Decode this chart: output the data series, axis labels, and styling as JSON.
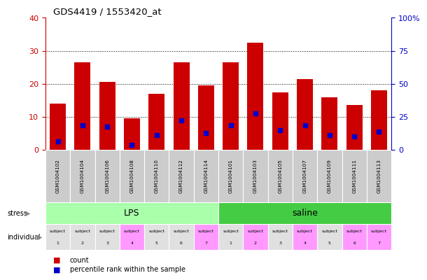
{
  "title": "GDS4419 / 1553420_at",
  "samples": [
    "GSM1004102",
    "GSM1004104",
    "GSM1004106",
    "GSM1004108",
    "GSM1004110",
    "GSM1004112",
    "GSM1004114",
    "GSM1004101",
    "GSM1004103",
    "GSM1004105",
    "GSM1004107",
    "GSM1004109",
    "GSM1004111",
    "GSM1004113"
  ],
  "counts": [
    14.0,
    26.5,
    20.5,
    9.5,
    17.0,
    26.5,
    19.5,
    26.5,
    32.5,
    17.5,
    21.5,
    16.0,
    13.5,
    18.0
  ],
  "percentile_ranks_left_scale": [
    2.5,
    7.5,
    7.0,
    1.5,
    4.5,
    9.0,
    5.0,
    7.5,
    11.0,
    6.0,
    7.5,
    4.5,
    4.0,
    5.5
  ],
  "bar_color": "#cc0000",
  "percentile_color": "#0000cc",
  "ylim_left": [
    0,
    40
  ],
  "ylim_right": [
    0,
    100
  ],
  "yticks_left": [
    0,
    10,
    20,
    30,
    40
  ],
  "yticks_right": [
    0,
    25,
    50,
    75,
    100
  ],
  "ytick_labels_left": [
    "0",
    "10",
    "20",
    "30",
    "40"
  ],
  "ytick_labels_right": [
    "0",
    "25",
    "50",
    "75",
    "100%"
  ],
  "stress_groups": [
    {
      "label": "LPS",
      "start": 0,
      "end": 7,
      "color": "#aaffaa"
    },
    {
      "label": "saline",
      "start": 7,
      "end": 14,
      "color": "#44cc44"
    }
  ],
  "individual_colors": [
    "#e0e0e0",
    "#e0e0e0",
    "#e0e0e0",
    "#ff99ff",
    "#e0e0e0",
    "#e0e0e0",
    "#ff99ff",
    "#e0e0e0",
    "#ff99ff",
    "#e0e0e0",
    "#ff99ff",
    "#e0e0e0",
    "#ff99ff",
    "#ff99ff"
  ],
  "individual_labels": [
    "subject\n1",
    "subject\n2",
    "subject\n3",
    "subject\n4",
    "subject\n5",
    "subject\n6",
    "subject\n7",
    "subject\n1",
    "subject\n2",
    "subject\n3",
    "subject\n4",
    "subject\n5",
    "subject\n6",
    "subject\n7"
  ],
  "background_color": "#ffffff",
  "plot_bg_color": "#ffffff",
  "axis_color_left": "#cc0000",
  "axis_color_right": "#0000cc",
  "sample_bg_color": "#cccccc",
  "legend_count_color": "#cc0000",
  "legend_percentile_color": "#0000cc"
}
